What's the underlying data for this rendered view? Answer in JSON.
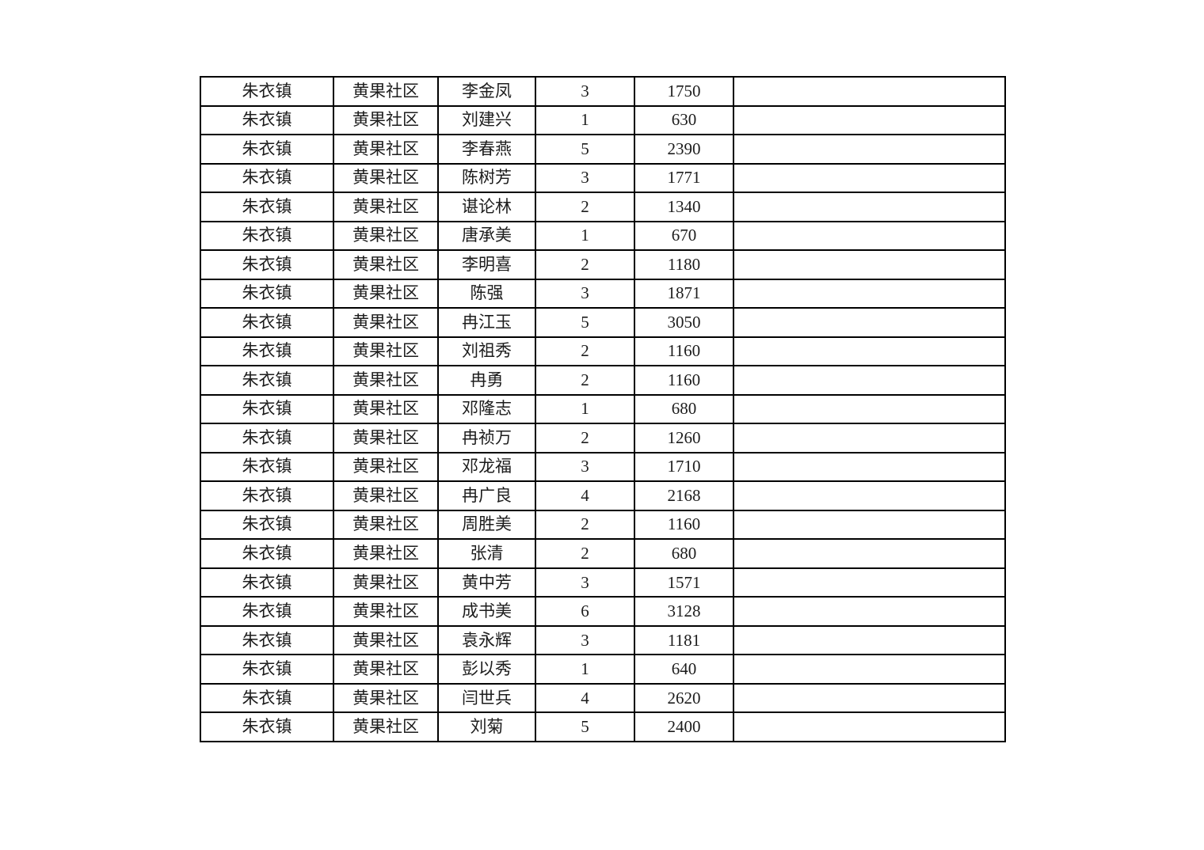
{
  "page": {
    "background_color": "#ffffff",
    "text_color": "#1c1c1c",
    "table_border_color": "#000000"
  },
  "table": {
    "columns": [
      "town",
      "community",
      "name",
      "count",
      "amount",
      "note"
    ],
    "rows": [
      [
        "朱衣镇",
        "黄果社区",
        "李金凤",
        "3",
        "1750",
        ""
      ],
      [
        "朱衣镇",
        "黄果社区",
        "刘建兴",
        "1",
        "630",
        ""
      ],
      [
        "朱衣镇",
        "黄果社区",
        "李春燕",
        "5",
        "2390",
        ""
      ],
      [
        "朱衣镇",
        "黄果社区",
        "陈树芳",
        "3",
        "1771",
        ""
      ],
      [
        "朱衣镇",
        "黄果社区",
        "谌论林",
        "2",
        "1340",
        ""
      ],
      [
        "朱衣镇",
        "黄果社区",
        "唐承美",
        "1",
        "670",
        ""
      ],
      [
        "朱衣镇",
        "黄果社区",
        "李明喜",
        "2",
        "1180",
        ""
      ],
      [
        "朱衣镇",
        "黄果社区",
        "陈强",
        "3",
        "1871",
        ""
      ],
      [
        "朱衣镇",
        "黄果社区",
        "冉江玉",
        "5",
        "3050",
        ""
      ],
      [
        "朱衣镇",
        "黄果社区",
        "刘祖秀",
        "2",
        "1160",
        ""
      ],
      [
        "朱衣镇",
        "黄果社区",
        "冉勇",
        "2",
        "1160",
        ""
      ],
      [
        "朱衣镇",
        "黄果社区",
        "邓隆志",
        "1",
        "680",
        ""
      ],
      [
        "朱衣镇",
        "黄果社区",
        "冉祯万",
        "2",
        "1260",
        ""
      ],
      [
        "朱衣镇",
        "黄果社区",
        "邓龙福",
        "3",
        "1710",
        ""
      ],
      [
        "朱衣镇",
        "黄果社区",
        "冉广良",
        "4",
        "2168",
        ""
      ],
      [
        "朱衣镇",
        "黄果社区",
        "周胜美",
        "2",
        "1160",
        ""
      ],
      [
        "朱衣镇",
        "黄果社区",
        "张清",
        "2",
        "680",
        ""
      ],
      [
        "朱衣镇",
        "黄果社区",
        "黄中芳",
        "3",
        "1571",
        ""
      ],
      [
        "朱衣镇",
        "黄果社区",
        "成书美",
        "6",
        "3128",
        ""
      ],
      [
        "朱衣镇",
        "黄果社区",
        "袁永辉",
        "3",
        "1181",
        ""
      ],
      [
        "朱衣镇",
        "黄果社区",
        "彭以秀",
        "1",
        "640",
        ""
      ],
      [
        "朱衣镇",
        "黄果社区",
        "闫世兵",
        "4",
        "2620",
        ""
      ],
      [
        "朱衣镇",
        "黄果社区",
        "刘菊",
        "5",
        "2400",
        ""
      ]
    ]
  }
}
